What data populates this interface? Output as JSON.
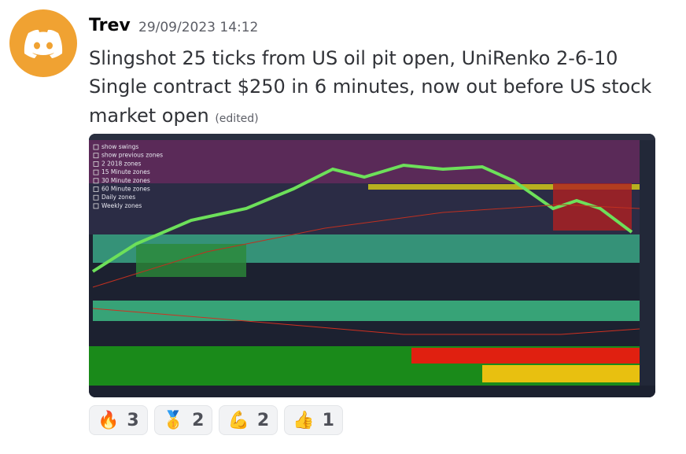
{
  "message": {
    "author": "Trev",
    "timestamp": "29/09/2023 14:12",
    "lines": [
      "Slingshot 25 ticks from US oil pit open, UniRenko 2-6-10",
      "Single contract $250 in 6 minutes, now out before US stock",
      "market open"
    ],
    "edited": "(edited)",
    "attachment": {
      "legend": [
        "show swings",
        "show previous zones",
        "2 2018 zones",
        "15 Minute zones",
        "30 Minute zones",
        "60 Minute zones",
        "Daily zones",
        "Weekly zones"
      ]
    },
    "reactions": [
      {
        "emoji": "🔥",
        "count": 3
      },
      {
        "emoji": "🥇",
        "count": 2
      },
      {
        "emoji": "💪",
        "count": 2
      },
      {
        "emoji": "👍",
        "count": 1
      }
    ]
  }
}
